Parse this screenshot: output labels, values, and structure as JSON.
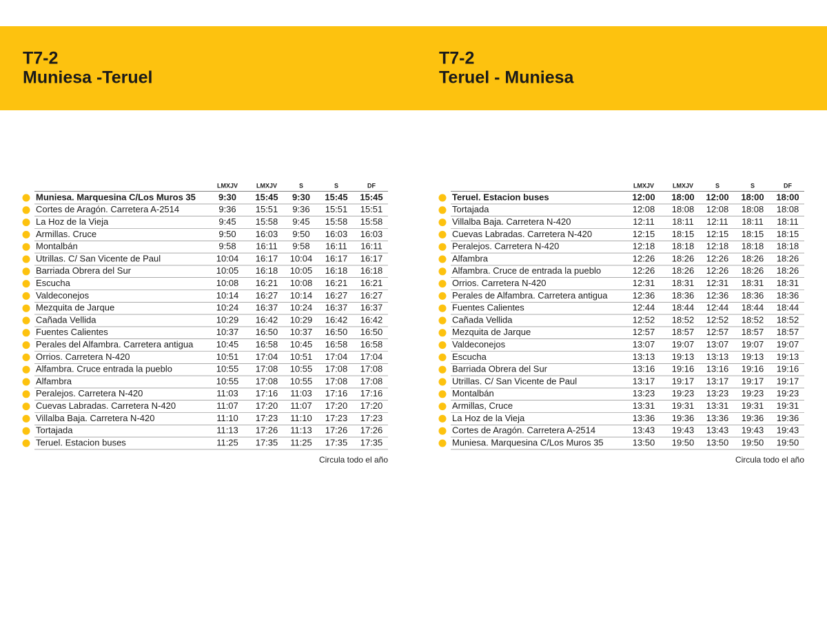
{
  "panels": [
    {
      "code": "T7-2",
      "route": "Muniesa -Teruel",
      "columns": [
        "LMXJV",
        "LMXJV",
        "S",
        "S",
        "DF"
      ],
      "rows": [
        {
          "stop": "Muniesa. Marquesina C/Los Muros 35",
          "times": [
            "9:30",
            "15:45",
            "9:30",
            "15:45",
            "15:45"
          ]
        },
        {
          "stop": "Cortes de Aragón. Carretera A-2514",
          "times": [
            "9:36",
            "15:51",
            "9:36",
            "15:51",
            "15:51"
          ]
        },
        {
          "stop": "La Hoz de la Vieja",
          "times": [
            "9:45",
            "15:58",
            "9:45",
            "15:58",
            "15:58"
          ]
        },
        {
          "stop": "Armillas. Cruce",
          "times": [
            "9:50",
            "16:03",
            "9:50",
            "16:03",
            "16:03"
          ]
        },
        {
          "stop": "Montalbán",
          "times": [
            "9:58",
            "16:11",
            "9:58",
            "16:11",
            "16:11"
          ]
        },
        {
          "stop": "Utrillas. C/ San Vicente de Paul",
          "times": [
            "10:04",
            "16:17",
            "10:04",
            "16:17",
            "16:17"
          ]
        },
        {
          "stop": "Barriada Obrera del Sur",
          "times": [
            "10:05",
            "16:18",
            "10:05",
            "16:18",
            "16:18"
          ]
        },
        {
          "stop": "Escucha",
          "times": [
            "10:08",
            "16:21",
            "10:08",
            "16:21",
            "16:21"
          ]
        },
        {
          "stop": "Valdeconejos",
          "times": [
            "10:14",
            "16:27",
            "10:14",
            "16:27",
            "16:27"
          ]
        },
        {
          "stop": "Mezquita de Jarque",
          "times": [
            "10:24",
            "16:37",
            "10:24",
            "16:37",
            "16:37"
          ]
        },
        {
          "stop": "Cañada Vellida",
          "times": [
            "10:29",
            "16:42",
            "10:29",
            "16:42",
            "16:42"
          ]
        },
        {
          "stop": "Fuentes Calientes",
          "times": [
            "10:37",
            "16:50",
            "10:37",
            "16:50",
            "16:50"
          ]
        },
        {
          "stop": "Perales del Alfambra. Carretera antigua",
          "times": [
            "10:45",
            "16:58",
            "10:45",
            "16:58",
            "16:58"
          ]
        },
        {
          "stop": "Orrios. Carretera N-420",
          "times": [
            "10:51",
            "17:04",
            "10:51",
            "17:04",
            "17:04"
          ]
        },
        {
          "stop": "Alfambra. Cruce entrada la pueblo",
          "times": [
            "10:55",
            "17:08",
            "10:55",
            "17:08",
            "17:08"
          ]
        },
        {
          "stop": "Alfambra",
          "times": [
            "10:55",
            "17:08",
            "10:55",
            "17:08",
            "17:08"
          ]
        },
        {
          "stop": "Peralejos. Carretera N-420",
          "times": [
            "11:03",
            "17:16",
            "11:03",
            "17:16",
            "17:16"
          ]
        },
        {
          "stop": "Cuevas Labradas. Carretera N-420",
          "times": [
            "11:07",
            "17:20",
            "11:07",
            "17:20",
            "17:20"
          ]
        },
        {
          "stop": "Villalba Baja. Carretera N-420",
          "times": [
            "11:10",
            "17:23",
            "11:10",
            "17:23",
            "17:23"
          ]
        },
        {
          "stop": "Tortajada",
          "times": [
            "11:13",
            "17:26",
            "11:13",
            "17:26",
            "17:26"
          ]
        },
        {
          "stop": "Teruel. Estacion buses",
          "times": [
            "11:25",
            "17:35",
            "11:25",
            "17:35",
            "17:35"
          ]
        }
      ],
      "note": "Circula todo el año"
    },
    {
      "code": "T7-2",
      "route": "Teruel - Muniesa",
      "columns": [
        "LMXJV",
        "LMXJV",
        "S",
        "S",
        "DF"
      ],
      "rows": [
        {
          "stop": "Teruel. Estacion buses",
          "times": [
            "12:00",
            "18:00",
            "12:00",
            "18:00",
            "18:00"
          ]
        },
        {
          "stop": "Tortajada",
          "times": [
            "12:08",
            "18:08",
            "12:08",
            "18:08",
            "18:08"
          ]
        },
        {
          "stop": "Villalba Baja. Carretera N-420",
          "times": [
            "12:11",
            "18:11",
            "12:11",
            "18:11",
            "18:11"
          ]
        },
        {
          "stop": "Cuevas Labradas. Carretera N-420",
          "times": [
            "12:15",
            "18:15",
            "12:15",
            "18:15",
            "18:15"
          ]
        },
        {
          "stop": "Peralejos. Carretera N-420",
          "times": [
            "12:18",
            "18:18",
            "12:18",
            "18:18",
            "18:18"
          ]
        },
        {
          "stop": "Alfambra",
          "times": [
            "12:26",
            "18:26",
            "12:26",
            "18:26",
            "18:26"
          ]
        },
        {
          "stop": "Alfambra. Cruce de entrada la pueblo",
          "times": [
            "12:26",
            "18:26",
            "12:26",
            "18:26",
            "18:26"
          ]
        },
        {
          "stop": "Orrios. Carretera N-420",
          "times": [
            "12:31",
            "18:31",
            "12:31",
            "18:31",
            "18:31"
          ]
        },
        {
          "stop": "Perales de Alfambra. Carretera antigua",
          "times": [
            "12:36",
            "18:36",
            "12:36",
            "18:36",
            "18:36"
          ]
        },
        {
          "stop": "Fuentes Calientes",
          "times": [
            "12:44",
            "18:44",
            "12:44",
            "18:44",
            "18:44"
          ]
        },
        {
          "stop": "Cañada Vellida",
          "times": [
            "12:52",
            "18:52",
            "12:52",
            "18:52",
            "18:52"
          ]
        },
        {
          "stop": "Mezquita de Jarque",
          "times": [
            "12:57",
            "18:57",
            "12:57",
            "18:57",
            "18:57"
          ]
        },
        {
          "stop": "Valdeconejos",
          "times": [
            "13:07",
            "19:07",
            "13:07",
            "19:07",
            "19:07"
          ]
        },
        {
          "stop": "Escucha",
          "times": [
            "13:13",
            "19:13",
            "13:13",
            "19:13",
            "19:13"
          ]
        },
        {
          "stop": "Barriada Obrera del Sur",
          "times": [
            "13:16",
            "19:16",
            "13:16",
            "19:16",
            "19:16"
          ]
        },
        {
          "stop": "Utrillas. C/ San Vicente de Paul",
          "times": [
            "13:17",
            "19:17",
            "13:17",
            "19:17",
            "19:17"
          ]
        },
        {
          "stop": "Montalbán",
          "times": [
            "13:23",
            "19:23",
            "13:23",
            "19:23",
            "19:23"
          ]
        },
        {
          "stop": "Armillas, Cruce",
          "times": [
            "13:31",
            "19:31",
            "13:31",
            "19:31",
            "19:31"
          ]
        },
        {
          "stop": "La Hoz de la Vieja",
          "times": [
            "13:36",
            "19:36",
            "13:36",
            "19:36",
            "19:36"
          ]
        },
        {
          "stop": "Cortes de Aragón. Carretera A-2514",
          "times": [
            "13:43",
            "19:43",
            "13:43",
            "19:43",
            "19:43"
          ]
        },
        {
          "stop": "Muniesa. Marquesina C/Los Muros 35",
          "times": [
            "13:50",
            "19:50",
            "13:50",
            "19:50",
            "19:50"
          ]
        }
      ],
      "note": "Circula todo el año"
    }
  ]
}
